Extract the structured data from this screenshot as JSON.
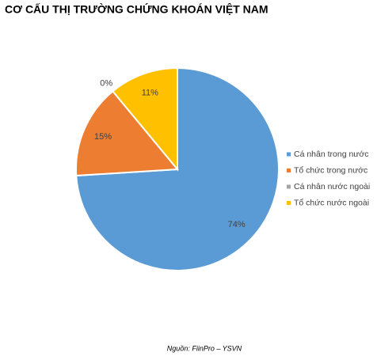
{
  "chart_data": {
    "type": "pie",
    "title": "CƠ CẤU THỊ TRƯỜNG CHỨNG KHOÁN VIỆT NAM",
    "categories": [
      "Cá nhân trong nước",
      "Tổ chức trong nước",
      "Cá nhân nước ngoài",
      "Tổ chức nước ngoài"
    ],
    "values": [
      74,
      15,
      0,
      11
    ],
    "value_labels": [
      "74%",
      "15%",
      "0%",
      "11%"
    ],
    "colors": [
      "#5b9bd5",
      "#ed7d31",
      "#a5a5a5",
      "#ffc000"
    ],
    "legend": "right",
    "source": "Nguồn: FiinPro – YSVN"
  }
}
